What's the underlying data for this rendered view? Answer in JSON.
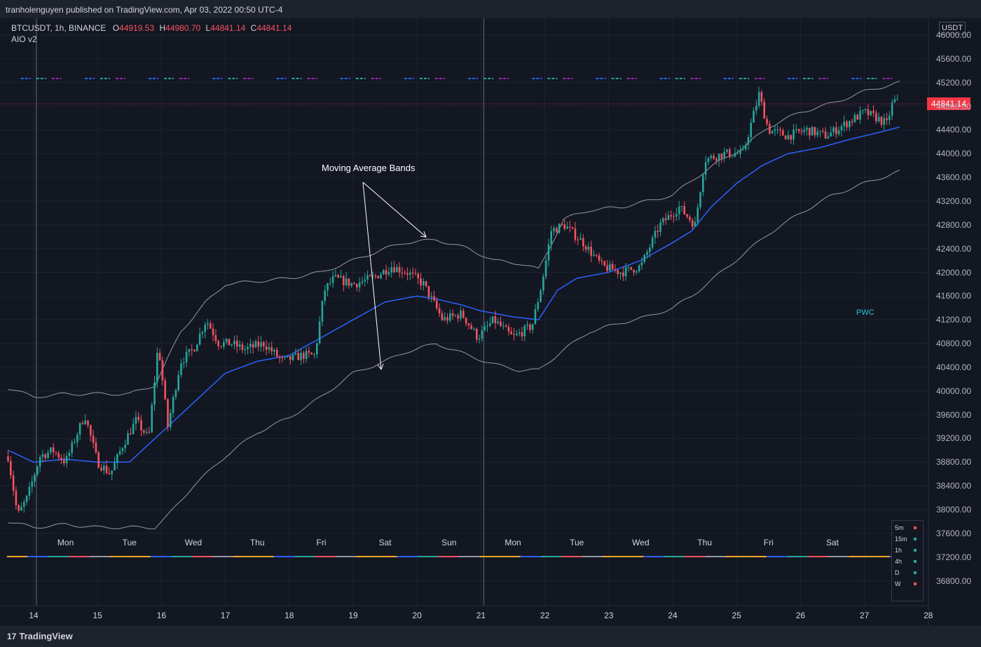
{
  "header": {
    "publisher": "tranholenguyen published on TradingView.com, Apr 03, 2022 00:50 UTC-4"
  },
  "legend": {
    "symbol": "BTCUSDT, 1h, BINANCE",
    "o_label": "O",
    "o": "44919.53",
    "h_label": "H",
    "h": "44980.70",
    "l_label": "L",
    "l": "44841.14",
    "c_label": "C",
    "c": "44841.14",
    "indicator": "AIO v2"
  },
  "currency_button": "USDT",
  "last_price": "44841.14",
  "annotation": "Moving Average Bands",
  "pwc_label": "PWC",
  "footer": {
    "brand": "TradingView",
    "brand_mark": "17"
  },
  "timeframes": [
    {
      "label": "5m",
      "status_color": "#f7525f"
    },
    {
      "label": "15m",
      "status_color": "#26a69a"
    },
    {
      "label": "1h",
      "status_color": "#26a69a"
    },
    {
      "label": "4h",
      "status_color": "#26a69a"
    },
    {
      "label": "D",
      "status_color": "#26a69a"
    },
    {
      "label": "W",
      "status_color": "#f7525f"
    }
  ],
  "colors": {
    "background": "#131722",
    "grid": "#1f2331",
    "up": "#26a69a",
    "down": "#f7525f",
    "ma": "#2962ff",
    "band": "#9598a1",
    "last_price_line": "#f23645"
  },
  "chart_data": {
    "type": "candlestick",
    "symbol": "BTCUSDT",
    "timeframe": "1h",
    "exchange": "BINANCE",
    "y_axis": {
      "ticks": [
        "46000.00",
        "45600.00",
        "45200.00",
        "44800.00",
        "44400.00",
        "44000.00",
        "43600.00",
        "43200.00",
        "42800.00",
        "42400.00",
        "42000.00",
        "41600.00",
        "41200.00",
        "40800.00",
        "40400.00",
        "40000.00",
        "39600.00",
        "39200.00",
        "38800.00",
        "38400.00",
        "38000.00",
        "37600.00",
        "37200.00",
        "36800.00"
      ],
      "range": [
        36500,
        46200
      ]
    },
    "x_axis": {
      "date_ticks": [
        {
          "label": "14",
          "day": 14
        },
        {
          "label": "15",
          "day": 15
        },
        {
          "label": "16",
          "day": 16
        },
        {
          "label": "17",
          "day": 17
        },
        {
          "label": "18",
          "day": 18
        },
        {
          "label": "19",
          "day": 19
        },
        {
          "label": "20",
          "day": 20
        },
        {
          "label": "21",
          "day": 21
        },
        {
          "label": "22",
          "day": 22
        },
        {
          "label": "23",
          "day": 23
        },
        {
          "label": "24",
          "day": 24
        },
        {
          "label": "25",
          "day": 25
        },
        {
          "label": "26",
          "day": 26
        },
        {
          "label": "27",
          "day": 27
        },
        {
          "label": "28",
          "day": 28
        }
      ],
      "weekday_labels": [
        {
          "label": "Mon",
          "day": 14.5
        },
        {
          "label": "Tue",
          "day": 15.5
        },
        {
          "label": "Wed",
          "day": 16.5
        },
        {
          "label": "Thu",
          "day": 17.5
        },
        {
          "label": "Fri",
          "day": 18.5
        },
        {
          "label": "Sat",
          "day": 19.5
        },
        {
          "label": "Sun",
          "day": 20.5
        },
        {
          "label": "Mon",
          "day": 21.5
        },
        {
          "label": "Tue",
          "day": 22.5
        },
        {
          "label": "Wed",
          "day": 23.5
        },
        {
          "label": "Thu",
          "day": 24.5
        },
        {
          "label": "Fri",
          "day": 25.5
        },
        {
          "label": "Sat",
          "day": 26.5
        }
      ],
      "range_days": [
        13.6,
        28.1
      ]
    },
    "week_separators": [
      14,
      21
    ],
    "last_price": 44841.14,
    "price_path": [
      {
        "day": 13.6,
        "price": 38900
      },
      {
        "day": 13.75,
        "price": 37900
      },
      {
        "day": 13.9,
        "price": 38200
      },
      {
        "day": 14.1,
        "price": 38900
      },
      {
        "day": 14.3,
        "price": 39000
      },
      {
        "day": 14.5,
        "price": 38800
      },
      {
        "day": 14.8,
        "price": 39600
      },
      {
        "day": 15.0,
        "price": 38800
      },
      {
        "day": 15.2,
        "price": 38600
      },
      {
        "day": 15.4,
        "price": 39100
      },
      {
        "day": 15.6,
        "price": 39500
      },
      {
        "day": 15.8,
        "price": 39200
      },
      {
        "day": 15.95,
        "price": 40800
      },
      {
        "day": 16.1,
        "price": 39400
      },
      {
        "day": 16.3,
        "price": 40500
      },
      {
        "day": 16.5,
        "price": 40700
      },
      {
        "day": 16.7,
        "price": 41200
      },
      {
        "day": 16.9,
        "price": 40800
      },
      {
        "day": 17.1,
        "price": 40800
      },
      {
        "day": 17.3,
        "price": 40700
      },
      {
        "day": 17.6,
        "price": 40800
      },
      {
        "day": 17.9,
        "price": 40500
      },
      {
        "day": 18.2,
        "price": 40600
      },
      {
        "day": 18.4,
        "price": 40600
      },
      {
        "day": 18.55,
        "price": 41700
      },
      {
        "day": 18.7,
        "price": 41900
      },
      {
        "day": 19.0,
        "price": 41800
      },
      {
        "day": 19.3,
        "price": 41900
      },
      {
        "day": 19.6,
        "price": 42100
      },
      {
        "day": 19.85,
        "price": 42000
      },
      {
        "day": 20.1,
        "price": 41800
      },
      {
        "day": 20.4,
        "price": 41200
      },
      {
        "day": 20.7,
        "price": 41300
      },
      {
        "day": 20.95,
        "price": 40900
      },
      {
        "day": 21.2,
        "price": 41200
      },
      {
        "day": 21.5,
        "price": 40900
      },
      {
        "day": 21.8,
        "price": 41100
      },
      {
        "day": 21.95,
        "price": 41800
      },
      {
        "day": 22.1,
        "price": 42700
      },
      {
        "day": 22.3,
        "price": 42800
      },
      {
        "day": 22.6,
        "price": 42500
      },
      {
        "day": 22.9,
        "price": 42100
      },
      {
        "day": 23.2,
        "price": 42000
      },
      {
        "day": 23.5,
        "price": 42100
      },
      {
        "day": 23.8,
        "price": 42800
      },
      {
        "day": 24.1,
        "price": 43100
      },
      {
        "day": 24.35,
        "price": 42800
      },
      {
        "day": 24.5,
        "price": 43900
      },
      {
        "day": 24.8,
        "price": 44000
      },
      {
        "day": 25.1,
        "price": 44000
      },
      {
        "day": 25.35,
        "price": 45000
      },
      {
        "day": 25.5,
        "price": 44400
      },
      {
        "day": 25.8,
        "price": 44300
      },
      {
        "day": 26.1,
        "price": 44400
      },
      {
        "day": 26.4,
        "price": 44300
      },
      {
        "day": 26.7,
        "price": 44500
      },
      {
        "day": 27.0,
        "price": 44700
      },
      {
        "day": 27.2,
        "price": 44600
      },
      {
        "day": 27.35,
        "price": 44500
      },
      {
        "day": 27.45,
        "price": 44900
      },
      {
        "day": 27.55,
        "price": 44841
      }
    ],
    "series": [
      {
        "name": "",
        "type": "line",
        "role": "moving-average",
        "color": "#2962ff",
        "points": [
          [
            13.6,
            39000
          ],
          [
            14.0,
            38800
          ],
          [
            14.5,
            38850
          ],
          [
            15.0,
            38800
          ],
          [
            15.5,
            38800
          ],
          [
            16.0,
            39300
          ],
          [
            16.5,
            39800
          ],
          [
            17.0,
            40300
          ],
          [
            17.5,
            40500
          ],
          [
            18.0,
            40600
          ],
          [
            18.5,
            40900
          ],
          [
            19.0,
            41200
          ],
          [
            19.5,
            41500
          ],
          [
            20.0,
            41600
          ],
          [
            20.3,
            41550
          ],
          [
            20.7,
            41450
          ],
          [
            21.0,
            41350
          ],
          [
            21.5,
            41250
          ],
          [
            21.9,
            41200
          ],
          [
            22.2,
            41700
          ],
          [
            22.5,
            41900
          ],
          [
            23.0,
            42000
          ],
          [
            23.5,
            42200
          ],
          [
            24.0,
            42500
          ],
          [
            24.3,
            42700
          ],
          [
            24.6,
            43100
          ],
          [
            25.0,
            43500
          ],
          [
            25.4,
            43800
          ],
          [
            25.8,
            44000
          ],
          [
            26.3,
            44100
          ],
          [
            26.8,
            44250
          ],
          [
            27.2,
            44350
          ],
          [
            27.55,
            44450
          ]
        ]
      },
      {
        "name": "",
        "type": "line",
        "role": "upper-band",
        "color": "#9598a1",
        "points": [
          [
            13.6,
            40050
          ],
          [
            14.0,
            39900
          ],
          [
            14.5,
            39950
          ],
          [
            15.0,
            39950
          ],
          [
            15.5,
            39950
          ],
          [
            15.9,
            40100
          ],
          [
            16.3,
            41000
          ],
          [
            16.7,
            41500
          ],
          [
            17.0,
            41800
          ],
          [
            17.5,
            41850
          ],
          [
            18.0,
            41900
          ],
          [
            18.5,
            42000
          ],
          [
            19.0,
            42200
          ],
          [
            19.5,
            42400
          ],
          [
            19.8,
            42500
          ],
          [
            20.3,
            42550
          ],
          [
            20.8,
            42400
          ],
          [
            21.2,
            42200
          ],
          [
            21.6,
            42150
          ],
          [
            21.9,
            42050
          ],
          [
            22.3,
            42900
          ],
          [
            22.7,
            43050
          ],
          [
            23.2,
            43100
          ],
          [
            23.6,
            43200
          ],
          [
            24.0,
            43300
          ],
          [
            24.3,
            43550
          ],
          [
            24.7,
            43850
          ],
          [
            25.1,
            44100
          ],
          [
            25.5,
            44450
          ],
          [
            26.0,
            44700
          ],
          [
            26.5,
            44850
          ],
          [
            27.0,
            45050
          ],
          [
            27.55,
            45200
          ]
        ]
      },
      {
        "name": "",
        "type": "line",
        "role": "lower-band",
        "color": "#9598a1",
        "points": [
          [
            13.6,
            37800
          ],
          [
            14.0,
            37700
          ],
          [
            14.5,
            37750
          ],
          [
            15.0,
            37700
          ],
          [
            15.5,
            37700
          ],
          [
            15.9,
            37700
          ],
          [
            16.1,
            37900
          ],
          [
            16.5,
            38400
          ],
          [
            17.0,
            38900
          ],
          [
            17.5,
            39300
          ],
          [
            18.0,
            39550
          ],
          [
            18.5,
            39900
          ],
          [
            19.0,
            40300
          ],
          [
            19.5,
            40500
          ],
          [
            19.8,
            40650
          ],
          [
            20.3,
            40800
          ],
          [
            20.8,
            40600
          ],
          [
            21.2,
            40450
          ],
          [
            21.6,
            40350
          ],
          [
            21.9,
            40350
          ],
          [
            22.3,
            40700
          ],
          [
            22.7,
            41000
          ],
          [
            23.2,
            41150
          ],
          [
            23.6,
            41250
          ],
          [
            24.0,
            41400
          ],
          [
            24.3,
            41600
          ],
          [
            24.7,
            41950
          ],
          [
            25.1,
            42300
          ],
          [
            25.5,
            42650
          ],
          [
            26.0,
            43000
          ],
          [
            26.5,
            43300
          ],
          [
            27.0,
            43500
          ],
          [
            27.55,
            43700
          ]
        ]
      }
    ]
  }
}
